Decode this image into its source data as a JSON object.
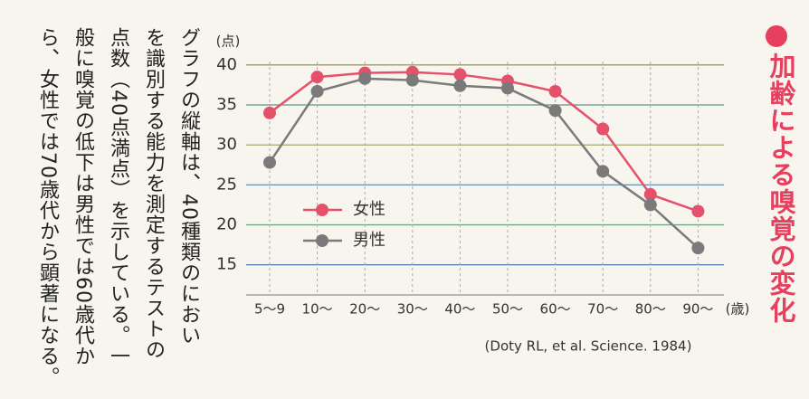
{
  "chart_data": {
    "type": "line",
    "title": "加齢による嗅覚の変化",
    "y_unit": "(点)",
    "x_unit": "(歳)",
    "categories": [
      "5〜9",
      "10〜",
      "20〜",
      "30〜",
      "40〜",
      "50〜",
      "60〜",
      "70〜",
      "80〜",
      "90〜"
    ],
    "series": [
      {
        "name": "女性",
        "color": "#e5506a",
        "values": [
          34,
          38.5,
          39,
          39.1,
          38.8,
          38,
          36.7,
          32,
          23.8,
          21.7
        ]
      },
      {
        "name": "男性",
        "color": "#7a7a7a",
        "values": [
          27.8,
          36.7,
          38.3,
          38.1,
          37.4,
          37.1,
          34.3,
          26.7,
          22.5,
          17.1
        ]
      }
    ],
    "ylim": [
      11,
      41
    ],
    "yticks": [
      15,
      20,
      25,
      30,
      35,
      40
    ],
    "grid": true,
    "source": "(Doty RL, et al. Science. 1984)"
  },
  "text": {
    "lines": [
      "グラフの縦軸は、40種類のにおい",
      "を識別する能力を測定するテストの",
      "点数（40点満点）を示している。一",
      "般に嗅覚の低下は男性では60歳代か",
      "ら、女性では70歳代から顕著になる。"
    ]
  }
}
